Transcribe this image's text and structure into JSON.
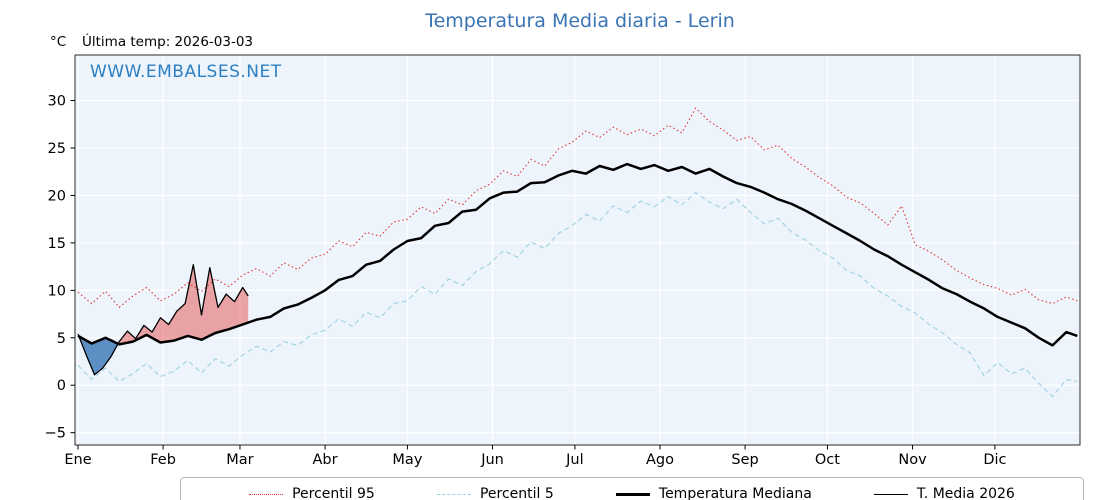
{
  "chart_data": {
    "type": "line",
    "title": "Temperatura Media diaria - Lerin",
    "ylabel": "°C",
    "annotation": "Última temp: 2026-03-03",
    "watermark": "WWW.EMBALSES.NET",
    "grid": true,
    "background": "#edf4fb",
    "gridline_color": "#ffffff",
    "x_months": [
      "Ene",
      "Feb",
      "Mar",
      "Abr",
      "May",
      "Jun",
      "Jul",
      "Ago",
      "Sep",
      "Oct",
      "Nov",
      "Dic"
    ],
    "month_start_days": [
      0,
      31,
      59,
      90,
      120,
      151,
      181,
      212,
      243,
      273,
      304,
      334
    ],
    "x_domain_days": [
      0,
      365
    ],
    "y_ticks": [
      -5,
      0,
      5,
      10,
      15,
      20,
      25,
      30
    ],
    "y_domain": [
      -6.3,
      34.8
    ],
    "series": [
      {
        "key": "percentil-95-line",
        "name": "Percentil 95",
        "color": "#e03434",
        "style": "dotted",
        "width": 1.1,
        "x_step_days": 5,
        "x_last_day": 364,
        "values": [
          9.8,
          8.6,
          9.9,
          8.2,
          9.4,
          10.3,
          8.9,
          9.6,
          10.8,
          9.9,
          11.2,
          10.4,
          11.6,
          12.3,
          11.5,
          12.9,
          12.2,
          13.4,
          13.8,
          15.2,
          14.6,
          16.1,
          15.7,
          17.2,
          17.5,
          18.8,
          18.1,
          19.6,
          19.0,
          20.5,
          21.2,
          22.6,
          22.0,
          23.8,
          23.1,
          24.9,
          25.6,
          26.8,
          26.1,
          27.2,
          26.4,
          27.0,
          26.3,
          27.4,
          26.6,
          29.2,
          27.8,
          26.9,
          25.8,
          26.2,
          24.8,
          25.3,
          23.9,
          23.0,
          21.9,
          21.0,
          19.8,
          19.2,
          18.1,
          16.9,
          18.9,
          14.8,
          14.1,
          13.2,
          12.1,
          11.3,
          10.6,
          10.2,
          9.5,
          10.1,
          9.0,
          8.6,
          9.3,
          8.9
        ]
      },
      {
        "key": "percentil-5-line",
        "name": "Percentil 5",
        "color": "#9fd0e2",
        "style": "dashed",
        "width": 1.1,
        "x_step_days": 5,
        "x_last_day": 364,
        "values": [
          2.1,
          0.6,
          1.8,
          0.4,
          1.2,
          2.3,
          0.9,
          1.5,
          2.6,
          1.3,
          2.8,
          2.0,
          3.2,
          4.1,
          3.5,
          4.6,
          4.2,
          5.3,
          5.8,
          7.0,
          6.2,
          7.7,
          7.1,
          8.6,
          8.9,
          10.4,
          9.6,
          11.2,
          10.5,
          12.0,
          12.8,
          14.2,
          13.5,
          15.1,
          14.4,
          16.0,
          16.8,
          18.0,
          17.3,
          18.9,
          18.2,
          19.4,
          18.8,
          19.9,
          19.0,
          20.3,
          19.3,
          18.6,
          19.6,
          18.2,
          17.0,
          17.6,
          16.1,
          15.3,
          14.2,
          13.4,
          12.1,
          11.5,
          10.2,
          9.4,
          8.3,
          7.6,
          6.4,
          5.5,
          4.3,
          3.4,
          1.0,
          2.4,
          1.2,
          1.8,
          0.2,
          -1.2,
          0.6,
          0.4
        ]
      },
      {
        "key": "temperatura-mediana-line",
        "name": "Temperatura Mediana",
        "color": "#000000",
        "style": "solid",
        "width": 2.5,
        "x_step_days": 5,
        "x_last_day": 364,
        "values": [
          5.2,
          4.4,
          5.0,
          4.3,
          4.6,
          5.3,
          4.5,
          4.7,
          5.2,
          4.8,
          5.5,
          5.9,
          6.4,
          6.9,
          7.2,
          8.1,
          8.5,
          9.2,
          10.0,
          11.1,
          11.5,
          12.7,
          13.1,
          14.3,
          15.2,
          15.5,
          16.8,
          17.1,
          18.3,
          18.5,
          19.7,
          20.3,
          20.4,
          21.3,
          21.4,
          22.1,
          22.6,
          22.3,
          23.1,
          22.7,
          23.3,
          22.8,
          23.2,
          22.6,
          23.0,
          22.3,
          22.8,
          22.0,
          21.3,
          20.9,
          20.3,
          19.6,
          19.1,
          18.4,
          17.6,
          16.8,
          16.0,
          15.2,
          14.3,
          13.6,
          12.7,
          11.9,
          11.1,
          10.2,
          9.6,
          8.8,
          8.1,
          7.2,
          6.6,
          6.0,
          5.0,
          4.2,
          5.6,
          5.2
        ]
      },
      {
        "key": "t-media-2026-line",
        "name": "T. Media 2026",
        "color": "#000000",
        "style": "solid",
        "width": 1.3,
        "x": [
          0,
          3,
          6,
          9,
          12,
          15,
          18,
          21,
          24,
          27,
          30,
          33,
          36,
          39,
          42,
          45,
          48,
          51,
          54,
          57,
          60,
          62
        ],
        "values": [
          5.4,
          3.2,
          1.1,
          1.8,
          3.0,
          4.6,
          5.7,
          4.9,
          6.3,
          5.6,
          7.1,
          6.4,
          7.8,
          8.6,
          12.7,
          7.4,
          12.4,
          8.2,
          9.6,
          8.8,
          10.3,
          9.4
        ]
      }
    ],
    "fills": {
      "between": [
        "T. Media 2026",
        "Temperatura Mediana"
      ],
      "above_color": "rgba(228,80,80,0.50)",
      "below_color": "rgba(66,124,186,0.85)"
    },
    "legend": [
      {
        "label": "Percentil 95"
      },
      {
        "label": "Percentil 5"
      },
      {
        "label": "Temperatura Mediana"
      },
      {
        "label": "T. Media 2026"
      }
    ],
    "legend_position": "bottom"
  }
}
